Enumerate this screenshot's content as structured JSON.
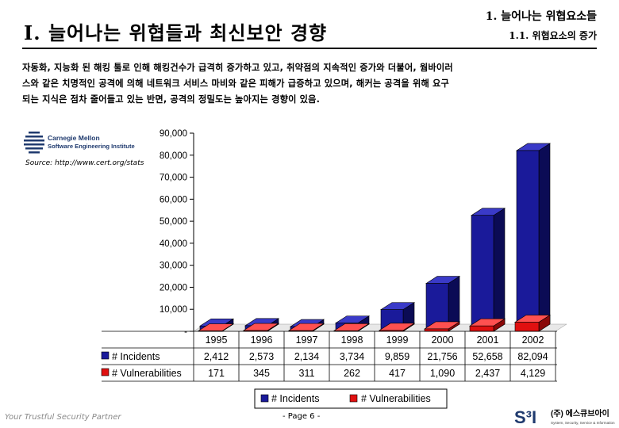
{
  "header": {
    "title": "I. 늘어나는 위협들과 최신보안 경향",
    "subtitle1": "1. 늘어나는 위협요소들",
    "subtitle2": "1.1. 위협요소의 증가"
  },
  "body": {
    "line1": "자동화, 지능화 된 해킹 툴로 인해 해킹건수가 급격히 증가하고 있고, 취약점의 지속적인 증가와 더불어, 웜바이러",
    "line2": "스와 같은 치명적인 공격에 의해 네트워크 서비스 마비와 같은 피해가 급증하고 있으며,  해커는 공격을 위해 요구",
    "line3": "되는 지식은 점차 줄어들고 있는 반면, 공격의 정밀도는 높아지는 경향이 있음."
  },
  "source": {
    "logo_line1": "Carnegie Mellon",
    "logo_line2": "Software Engineering Institute",
    "text": "Source: http://www.cert.org/stats"
  },
  "colors": {
    "incidents": "#1a1a9a",
    "vulnerabilities": "#e01010"
  },
  "chart_data": {
    "type": "bar",
    "categories": [
      "1995",
      "1996",
      "1997",
      "1998",
      "1999",
      "2000",
      "2001",
      "2002"
    ],
    "series": [
      {
        "name": "# Incidents",
        "values": [
          2412,
          2573,
          2134,
          3734,
          9859,
          21756,
          52658,
          82094
        ],
        "labels": [
          "2,412",
          "2,573",
          "2,134",
          "3,734",
          "9,859",
          "21,756",
          "52,658",
          "82,094"
        ]
      },
      {
        "name": "# Vulnerabilities",
        "values": [
          171,
          345,
          311,
          262,
          417,
          1090,
          2437,
          4129
        ],
        "labels": [
          "171",
          "345",
          "311",
          "262",
          "417",
          "1,090",
          "2,437",
          "4,129"
        ]
      }
    ],
    "y_ticks": [
      0,
      10000,
      20000,
      30000,
      40000,
      50000,
      60000,
      70000,
      80000,
      90000
    ],
    "y_tick_labels": [
      "-",
      "10,000",
      "20,000",
      "30,000",
      "40,000",
      "50,000",
      "60,000",
      "70,000",
      "80,000",
      "90,000"
    ],
    "ylim": [
      0,
      90000
    ],
    "legend": [
      "# Incidents",
      "# Vulnerabilities"
    ],
    "legend_position": "bottom",
    "style": "3d-column-with-data-table"
  },
  "footer": {
    "tagline": "Your Trustful Security Partner",
    "page": "- Page  6 -",
    "logo_mark": "S³I",
    "company": "(주) 에스큐브아이",
    "company_sub": "System, Security, Service & Information"
  }
}
